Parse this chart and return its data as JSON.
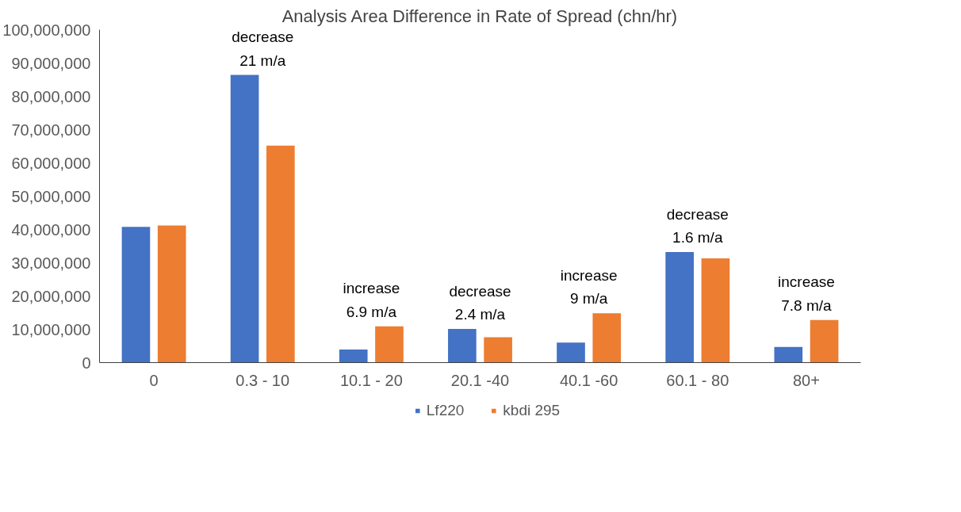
{
  "chart_data": {
    "type": "bar",
    "title": "Analysis Area Difference in Rate of Spread (chn/hr)",
    "categories": [
      "0",
      "0.3 - 10",
      "10.1 - 20",
      "20.1 -40",
      "40.1 -60",
      "60.1 - 80",
      "80+"
    ],
    "series": [
      {
        "name": "Lf220",
        "color": "#4472c4",
        "values": [
          40800000,
          86400000,
          3900000,
          10100000,
          6000000,
          33200000,
          4700000
        ]
      },
      {
        "name": "kbdi 295",
        "color": "#ed7d31",
        "values": [
          41200000,
          65200000,
          10900000,
          7600000,
          14800000,
          31300000,
          12800000
        ]
      }
    ],
    "ylim": [
      0,
      100000000
    ],
    "yticks": [
      {
        "value": 0,
        "label": "0"
      },
      {
        "value": 10000000,
        "label": "10,000,000"
      },
      {
        "value": 20000000,
        "label": "20,000,000"
      },
      {
        "value": 30000000,
        "label": "30,000,000"
      },
      {
        "value": 40000000,
        "label": "40,000,000"
      },
      {
        "value": 50000000,
        "label": "50,000,000"
      },
      {
        "value": 60000000,
        "label": "60,000,000"
      },
      {
        "value": 70000000,
        "label": "70,000,000"
      },
      {
        "value": 80000000,
        "label": "80,000,000"
      },
      {
        "value": 90000000,
        "label": "90,000,000"
      },
      {
        "value": 100000000,
        "label": "100,000,000"
      }
    ],
    "annotations": [
      "decrease 21 m/a",
      "increase 6.9 m/a",
      "decrease 2.4 m/a",
      "increase 9 m/a",
      "decrease 1.6 m/a",
      "increase 7.8 m/a"
    ],
    "grid": false,
    "legend": "bottom"
  }
}
